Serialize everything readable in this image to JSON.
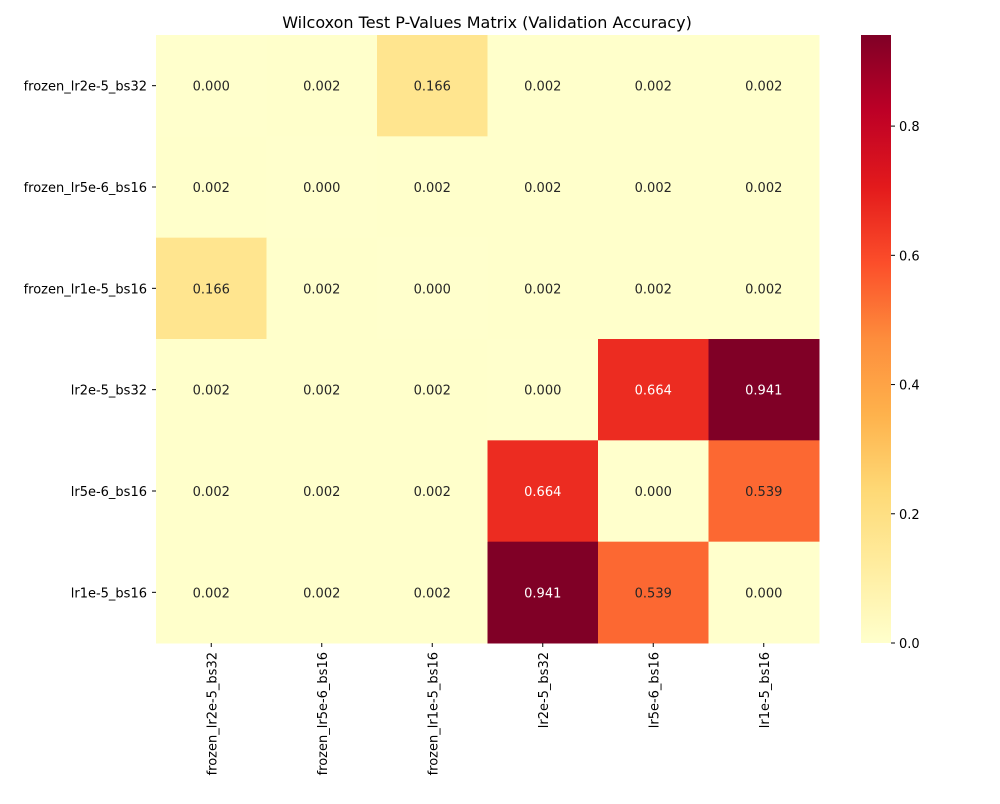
{
  "chart_data": {
    "type": "heatmap",
    "title": "Wilcoxon Test P-Values Matrix (Validation Accuracy)",
    "row_labels": [
      "frozen_lr2e-5_bs32",
      "frozen_lr5e-6_bs16",
      "frozen_lr1e-5_bs16",
      "lr2e-5_bs32",
      "lr5e-6_bs16",
      "lr1e-5_bs16"
    ],
    "col_labels": [
      "frozen_lr2e-5_bs32",
      "frozen_lr5e-6_bs16",
      "frozen_lr1e-5_bs16",
      "lr2e-5_bs32",
      "lr5e-6_bs16",
      "lr1e-5_bs16"
    ],
    "values": [
      [
        0.0,
        0.002,
        0.166,
        0.002,
        0.002,
        0.002
      ],
      [
        0.002,
        0.0,
        0.002,
        0.002,
        0.002,
        0.002
      ],
      [
        0.166,
        0.002,
        0.0,
        0.002,
        0.002,
        0.002
      ],
      [
        0.002,
        0.002,
        0.002,
        0.0,
        0.664,
        0.941
      ],
      [
        0.002,
        0.002,
        0.002,
        0.664,
        0.0,
        0.539
      ],
      [
        0.002,
        0.002,
        0.002,
        0.941,
        0.539,
        0.0
      ]
    ],
    "value_format_decimals": 3,
    "colormap": "YlOrRd",
    "color_range": [
      0,
      0.941
    ],
    "colorbar_ticks": [
      0.0,
      0.2,
      0.4,
      0.6,
      0.8
    ],
    "colorbar_tick_labels": [
      "0.0",
      "0.2",
      "0.4",
      "0.6",
      "0.8"
    ],
    "colormap_stops": [
      "#ffffcc",
      "#ffeda0",
      "#fed976",
      "#feb24c",
      "#fd8d3c",
      "#fc4e2a",
      "#e31a1c",
      "#bd0026",
      "#800026"
    ]
  }
}
